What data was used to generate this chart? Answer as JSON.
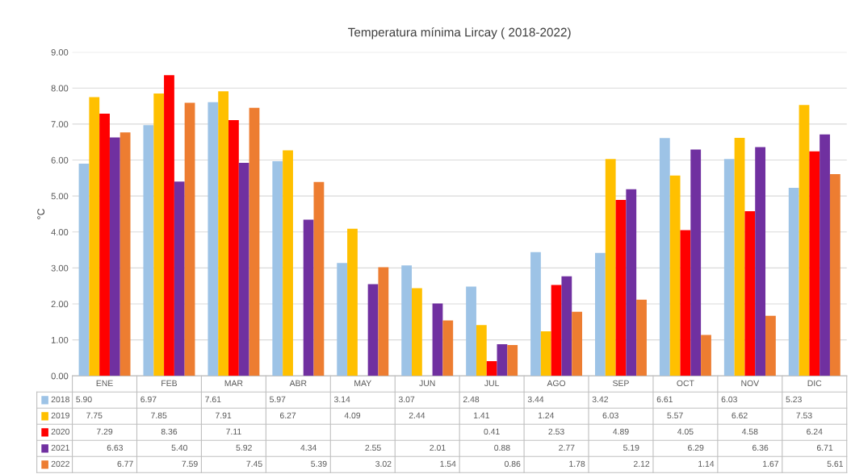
{
  "chart_data": {
    "type": "bar",
    "title": "Temperatura mínima Lircay ( 2018-2022)",
    "ylabel": "°C",
    "categories": [
      "ENE",
      "FEB",
      "MAR",
      "ABR",
      "MAY",
      "JUN",
      "JUL",
      "AGO",
      "SEP",
      "OCT",
      "NOV",
      "DIC"
    ],
    "series": [
      {
        "name": "2018",
        "color": "#9dc3e6",
        "values": [
          5.9,
          6.97,
          7.61,
          5.97,
          3.14,
          3.07,
          2.48,
          3.44,
          3.42,
          6.61,
          6.03,
          5.23
        ],
        "value_labels": [
          "5.90",
          "6.97",
          "7.61",
          "5.97",
          "3.14",
          "3.07",
          "2.48",
          "3.44",
          "3.42",
          "6.61",
          "6.03",
          "5.23"
        ]
      },
      {
        "name": "2019",
        "color": "#ffc000",
        "values": [
          7.75,
          7.85,
          7.91,
          6.27,
          4.09,
          2.44,
          1.41,
          1.24,
          6.03,
          5.57,
          6.62,
          7.53
        ],
        "value_labels": [
          "7.75",
          "7.85",
          "7.91",
          "6.27",
          "4.09",
          "2.44",
          "1.41",
          "1.24",
          "6.03",
          "5.57",
          "6.62",
          "7.53"
        ]
      },
      {
        "name": "2020",
        "color": "#ff0000",
        "values": [
          7.29,
          8.36,
          7.11,
          null,
          null,
          null,
          0.41,
          2.53,
          4.89,
          4.05,
          4.58,
          6.24
        ],
        "value_labels": [
          "7.29",
          "8.36",
          "7.11",
          null,
          null,
          null,
          "0.41",
          "2.53",
          "4.89",
          "4.05",
          "4.58",
          "6.24"
        ]
      },
      {
        "name": "2021",
        "color": "#7030a0",
        "values": [
          6.63,
          5.4,
          5.92,
          4.34,
          2.55,
          2.01,
          0.88,
          2.77,
          5.19,
          6.29,
          6.36,
          6.71
        ],
        "value_labels": [
          "6.63",
          "5.40",
          "5.92",
          "4.34",
          "2.55",
          "2.01",
          "0.88",
          "2.77",
          "5.19",
          "6.29",
          "6.36",
          "6.71"
        ]
      },
      {
        "name": "2022",
        "color": "#ed7d31",
        "values": [
          6.77,
          7.59,
          7.45,
          5.39,
          3.02,
          1.54,
          0.86,
          1.78,
          2.12,
          1.14,
          1.67,
          5.61
        ],
        "value_labels": [
          "6.77",
          "7.59",
          "7.45",
          "5.39",
          "3.02",
          "1.54",
          "0.86",
          "1.78",
          "2.12",
          "1.14",
          "1.67",
          "5.61"
        ]
      }
    ],
    "ylim": [
      0,
      9
    ],
    "yticks": [
      {
        "value": 0,
        "label": "0.00"
      },
      {
        "value": 1,
        "label": "1.00"
      },
      {
        "value": 2,
        "label": "2.00"
      },
      {
        "value": 3,
        "label": "3.00"
      },
      {
        "value": 4,
        "label": "4.00"
      },
      {
        "value": 5,
        "label": "5.00"
      },
      {
        "value": 6,
        "label": "6.00"
      },
      {
        "value": 7,
        "label": "7.00"
      },
      {
        "value": 8,
        "label": "8.00"
      },
      {
        "value": 9,
        "label": "9.00"
      }
    ],
    "grid": "y",
    "legend": "bottom"
  }
}
